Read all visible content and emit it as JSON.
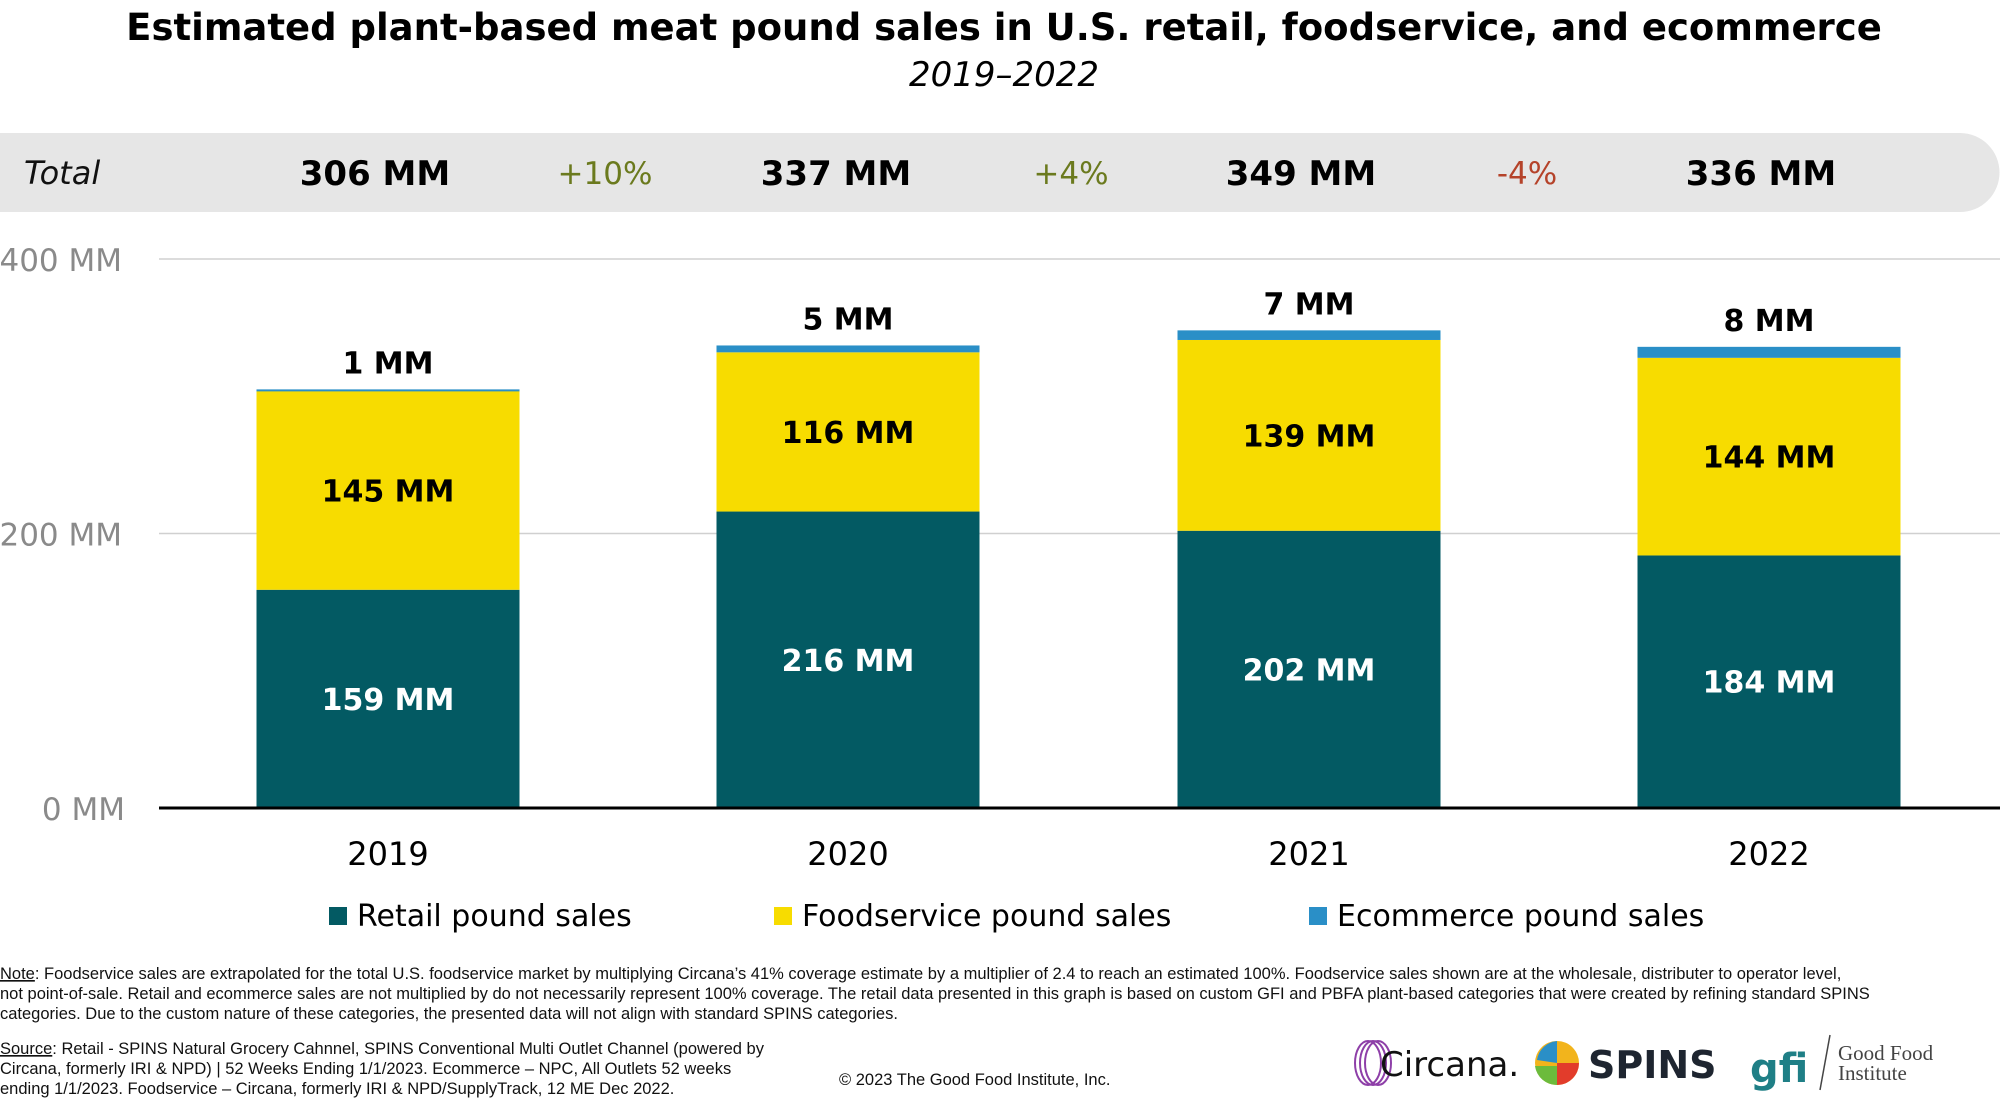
{
  "chart_data": {
    "type": "bar",
    "stacked": true,
    "title": "Estimated plant-based meat pound sales in U.S. retail, foodservice, and ecommerce",
    "subtitle": "2019–2022",
    "categories": [
      "2019",
      "2020",
      "2021",
      "2022"
    ],
    "series": [
      {
        "name": "Retail pound sales",
        "color": "#035a63",
        "values": [
          159,
          216,
          202,
          184
        ],
        "labels": [
          "159 MM",
          "216 MM",
          "202 MM",
          "184 MM"
        ]
      },
      {
        "name": "Foodservice pound sales",
        "color": "#f7dc00",
        "values": [
          145,
          116,
          139,
          144
        ],
        "labels": [
          "145 MM",
          "116 MM",
          "139 MM",
          "144 MM"
        ]
      },
      {
        "name": "Ecommerce pound sales",
        "color": "#2a8fc7",
        "values": [
          1,
          5,
          7,
          8
        ],
        "labels": [
          "1 MM",
          "5 MM",
          "7 MM",
          "8 MM"
        ]
      }
    ],
    "ylim": [
      0,
      400
    ],
    "yticks": [
      0,
      200,
      400
    ],
    "ytick_labels": [
      "0 MM",
      "200 MM",
      "400 MM"
    ],
    "grid": true,
    "legend": "bottom",
    "totals": {
      "label": "Total",
      "values": [
        "306 MM",
        "337 MM",
        "349 MM",
        "336 MM"
      ],
      "changes": [
        {
          "text": "+10%",
          "color": "#6b7a1e"
        },
        {
          "text": "+4%",
          "color": "#6b7a1e"
        },
        {
          "text": "-4%",
          "color": "#b5432a"
        }
      ]
    }
  },
  "footer": {
    "note_label": "Note",
    "note_lines": [
      ": Foodservice sales are extrapolated for the total U.S. foodservice market by multiplying Circana’s 41% coverage estimate by a multiplier of 2.4 to reach an estimated 100%. Foodservice sales shown are at the wholesale, distributer to operator level,",
      "not point-of-sale. Retail and ecommerce sales are not multiplied by do not necessarily represent 100% coverage. The retail data presented in this graph is based on custom GFI and PBFA plant-based categories that were created by refining standard SPINS",
      "categories. Due to the custom nature of these categories, the presented data will not align with standard SPINS categories."
    ],
    "source_label": "Source",
    "source_lines": [
      ": Retail - SPINS Natural Grocery Cahnnel, SPINS Conventional Multi Outlet Channel (powered by",
      "Circana, formerly IRI & NPD) | 52 Weeks Ending 1/1/2023. Ecommerce – NPC, All Outlets 52 weeks",
      "ending 1/1/2023. Foodservice – Circana, formerly IRI & NPD/SupplyTrack, 12 ME Dec 2022."
    ],
    "copyright": "© 2023 The Good Food Institute, Inc.",
    "logos": {
      "circana": "Circana.",
      "spins": "SPINS",
      "gfi_mark": "gfi",
      "gfi_name_1": "Good Food",
      "gfi_name_2": "Institute"
    }
  }
}
